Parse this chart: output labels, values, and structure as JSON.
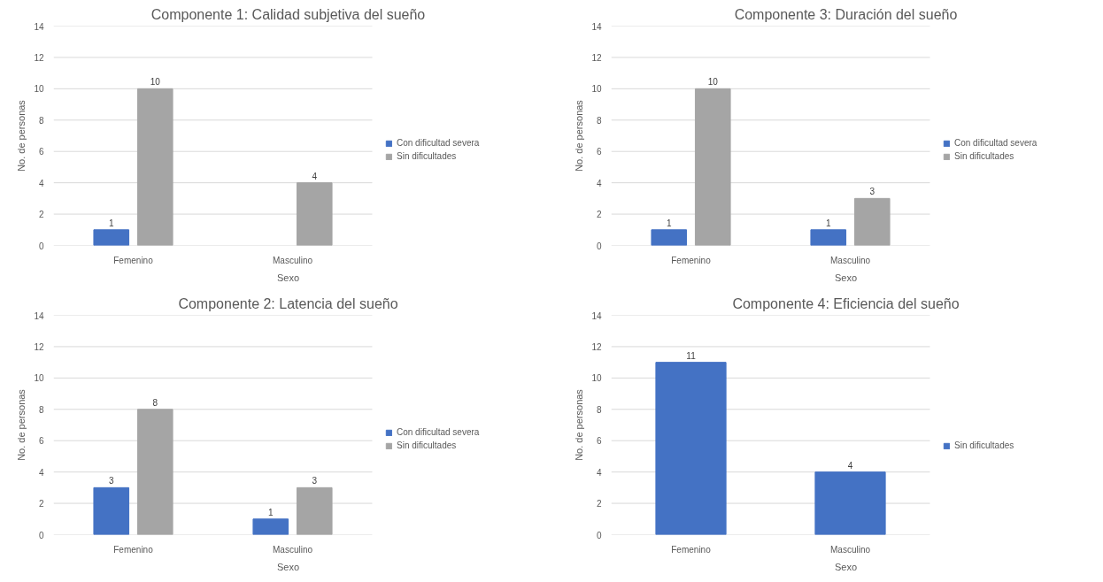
{
  "chart_data": [
    {
      "type": "bar",
      "title": "Componente 1: Calidad subjetiva del sueño",
      "xlabel": "Sexo",
      "ylabel": "No. de personas",
      "categories": [
        "Femenino",
        "Masculino"
      ],
      "ylim": [
        0,
        14
      ],
      "yticks": [
        0,
        2,
        4,
        6,
        8,
        10,
        12,
        14
      ],
      "grid": "y",
      "legend": "right",
      "data_labels": true,
      "series": [
        {
          "name": "Con dificultad severa",
          "color": "#4472c4",
          "values": [
            1,
            null
          ]
        },
        {
          "name": "Sin dificultades",
          "color": "#a5a5a5",
          "values": [
            10,
            4
          ]
        }
      ]
    },
    {
      "type": "bar",
      "title": "Componente 3: Duración del sueño",
      "xlabel": "Sexo",
      "ylabel": "No. de personas",
      "categories": [
        "Femenino",
        "Masculino"
      ],
      "ylim": [
        0,
        14
      ],
      "yticks": [
        0,
        2,
        4,
        6,
        8,
        10,
        12,
        14
      ],
      "grid": "y",
      "legend": "right",
      "data_labels": true,
      "series": [
        {
          "name": "Con dificultad severa",
          "color": "#4472c4",
          "values": [
            1,
            1
          ]
        },
        {
          "name": "Sin dificultades",
          "color": "#a5a5a5",
          "values": [
            10,
            3
          ]
        }
      ]
    },
    {
      "type": "bar",
      "title": "Componente 2: Latencia del sueño",
      "xlabel": "Sexo",
      "ylabel": "No. de personas",
      "categories": [
        "Femenino",
        "Masculino"
      ],
      "ylim": [
        0,
        14
      ],
      "yticks": [
        0,
        2,
        4,
        6,
        8,
        10,
        12,
        14
      ],
      "grid": "y",
      "legend": "right",
      "data_labels": true,
      "series": [
        {
          "name": "Con dificultad severa",
          "color": "#4472c4",
          "values": [
            3,
            1
          ]
        },
        {
          "name": "Sin dificultades",
          "color": "#a5a5a5",
          "values": [
            8,
            3
          ]
        }
      ]
    },
    {
      "type": "bar",
      "title": "Componente 4: Eficiencia del sueño",
      "xlabel": "Sexo",
      "ylabel": "No. de personas",
      "categories": [
        "Femenino",
        "Masculino"
      ],
      "ylim": [
        0,
        14
      ],
      "yticks": [
        0,
        2,
        4,
        6,
        8,
        10,
        12,
        14
      ],
      "grid": "y",
      "legend": "right",
      "data_labels": true,
      "series": [
        {
          "name": "Sin dificultades",
          "color": "#4472c4",
          "values": [
            11,
            4
          ]
        }
      ]
    }
  ]
}
